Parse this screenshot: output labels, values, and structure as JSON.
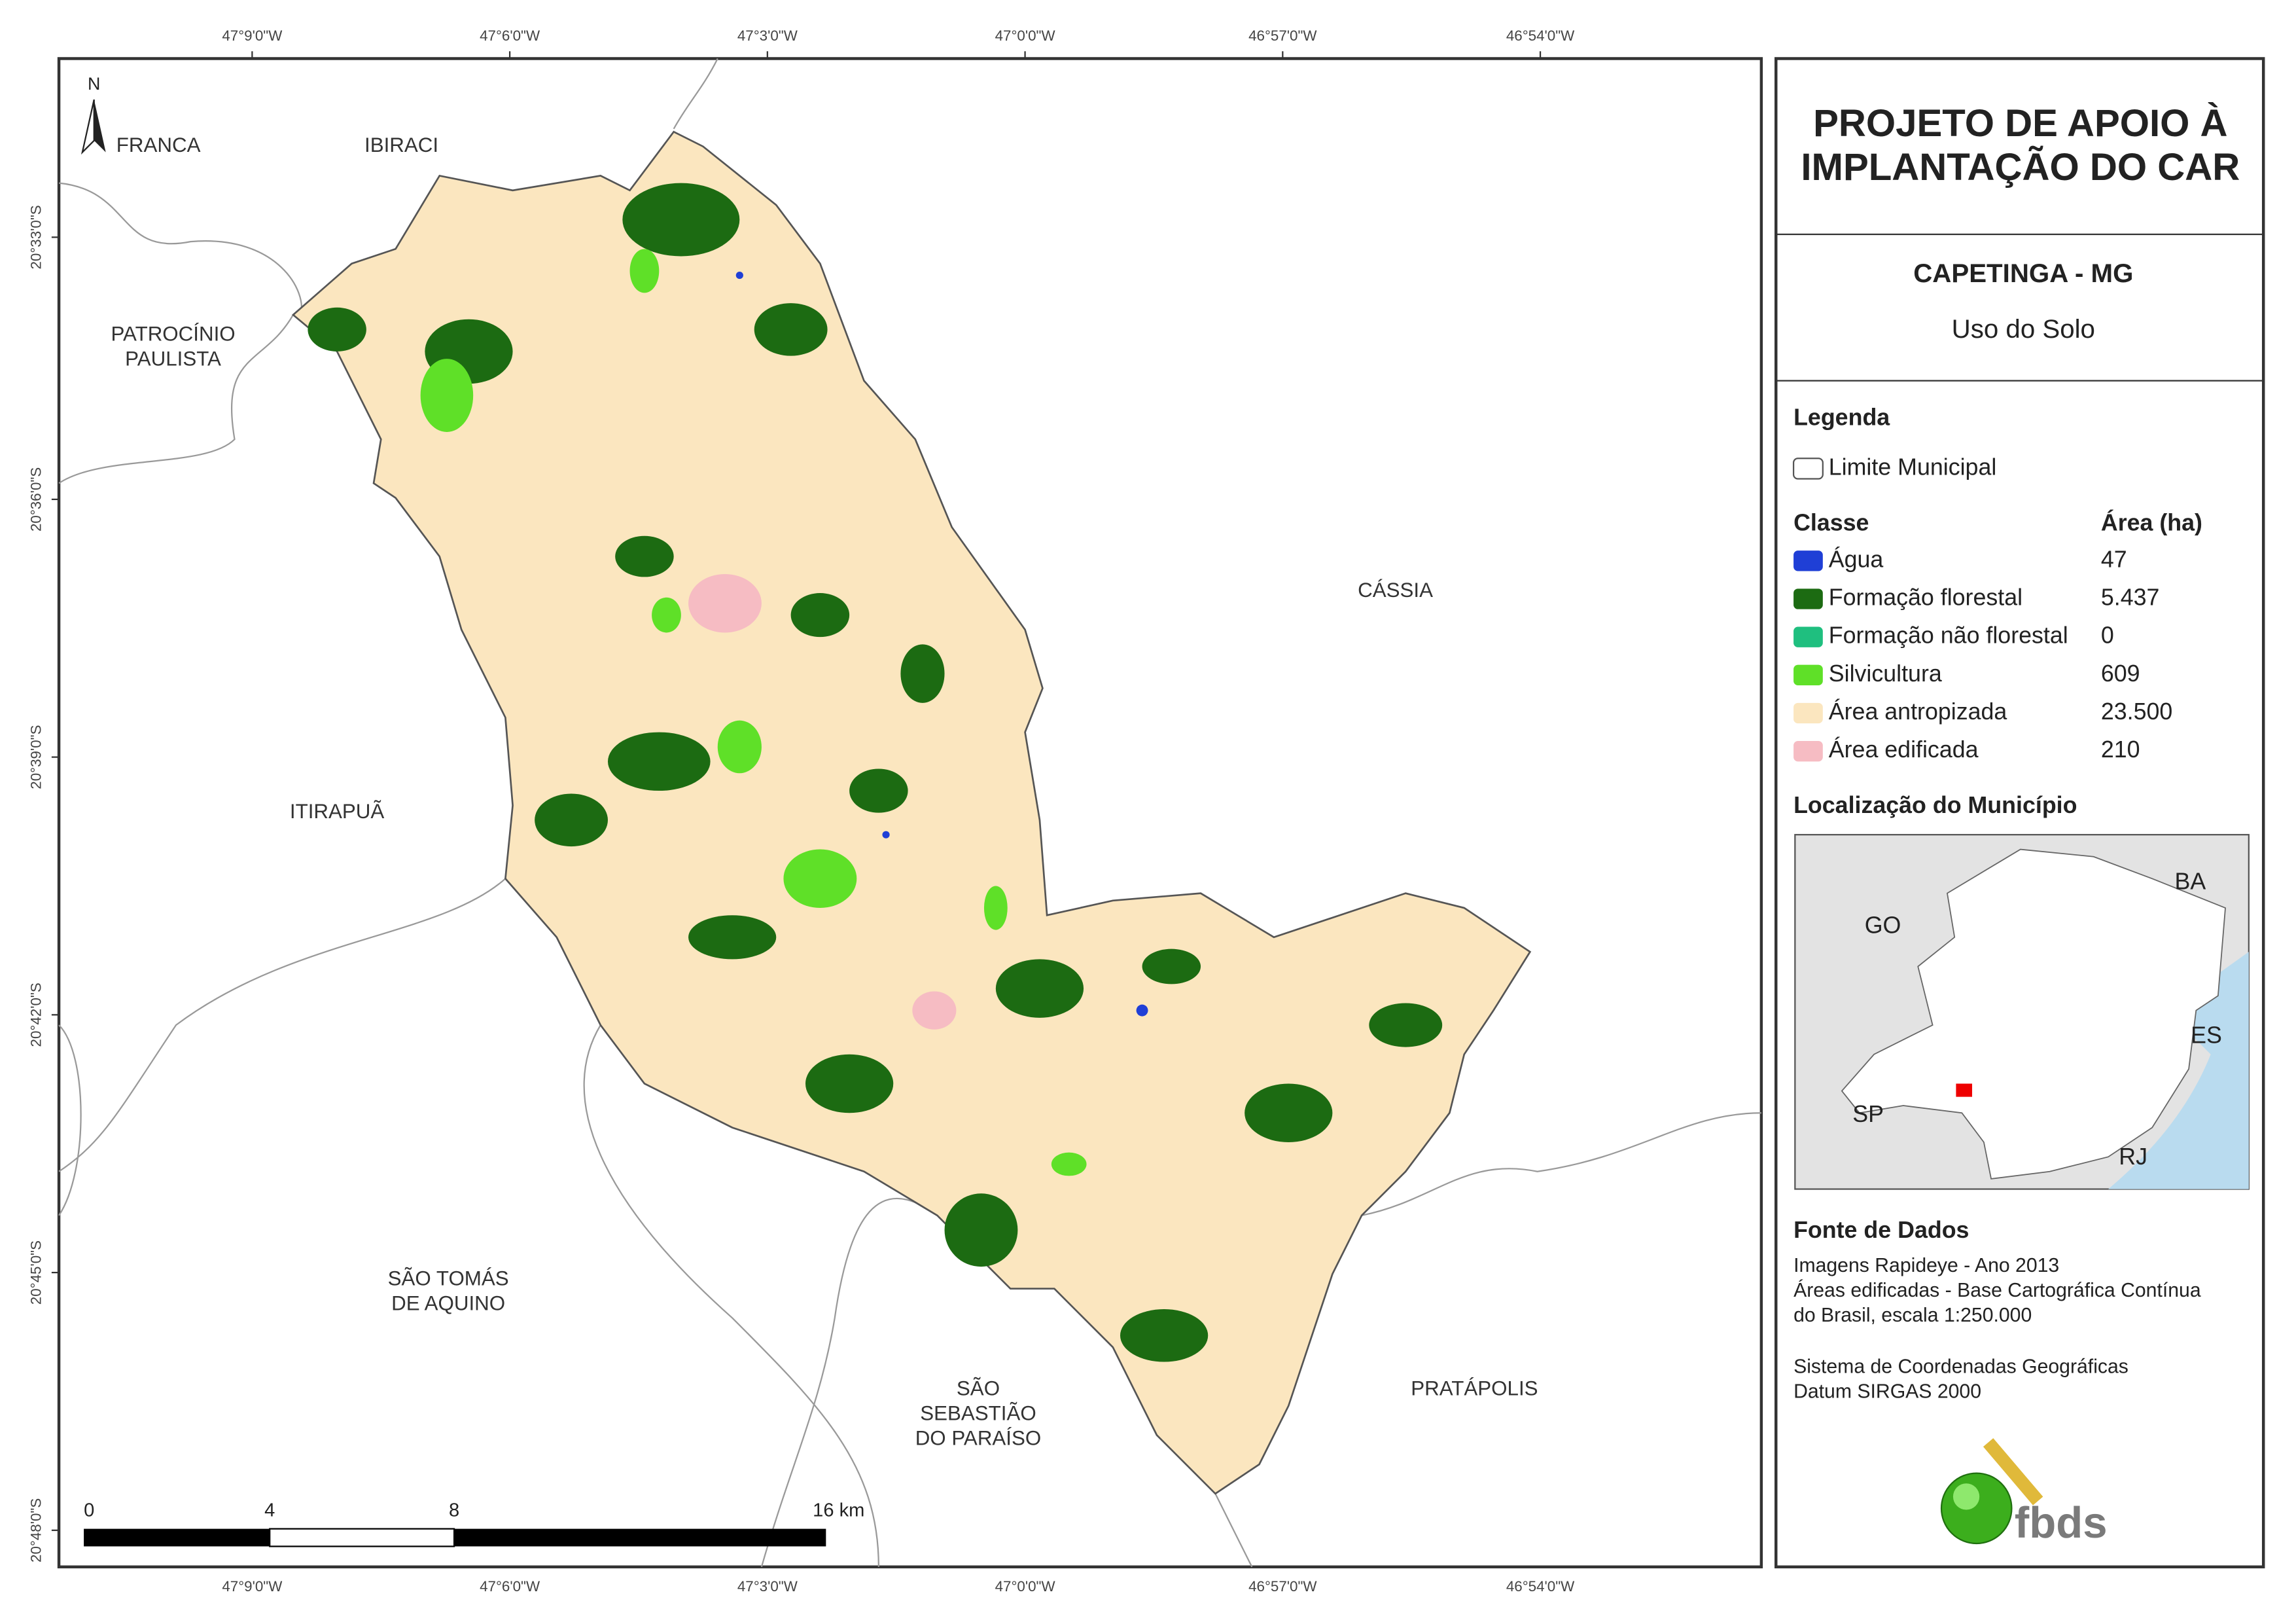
{
  "map": {
    "longitudes": [
      "47°9'0\"W",
      "47°6'0\"W",
      "47°3'0\"W",
      "47°0'0\"W",
      "46°57'0\"W",
      "46°54'0\"W"
    ],
    "latitudes": [
      "20°33'0\"S",
      "20°36'0\"S",
      "20°39'0\"S",
      "20°42'0\"S",
      "20°45'0\"S",
      "20°48'0\"S"
    ],
    "places": [
      [
        "FRANCA"
      ],
      [
        "IBIRACI"
      ],
      [
        "PATROCÍNIO",
        "PAULISTA"
      ],
      [
        "CÁSSIA"
      ],
      [
        "ITIRAPUÃ"
      ],
      [
        "SÃO TOMÁS",
        "DE AQUINO"
      ],
      [
        "SÃO",
        "SEBASTIÃO",
        "DO PARAÍSO"
      ],
      [
        "PRATÁPOLIS"
      ]
    ],
    "north": "N",
    "scale": [
      "0",
      "4",
      "8",
      "16 km"
    ]
  },
  "panel": {
    "title": [
      "PROJETO DE APOIO À",
      "IMPLANTAÇÃO DO CAR"
    ],
    "municipality": "CAPETINGA - MG",
    "subtitle": "Uso do Solo",
    "legend": {
      "heading": "Legenda",
      "boundary": "Limite Municipal",
      "class_header": "Classe",
      "area_header": "Área (ha)",
      "classes": [
        {
          "name": "Água",
          "area": "47",
          "color": "#1f3fd6"
        },
        {
          "name": "Formação florestal",
          "area": "5.437",
          "color": "#1c6b12"
        },
        {
          "name": "Formação não florestal",
          "area": "0",
          "color": "#1fbf7f"
        },
        {
          "name": "Silvicultura",
          "area": "609",
          "color": "#5fe028"
        },
        {
          "name": "Área antropizada",
          "area": "23.500",
          "color": "#fbe6bf"
        },
        {
          "name": "Área edificada",
          "area": "210",
          "color": "#f6bcc3"
        }
      ]
    },
    "location": {
      "heading": "Localização do Município",
      "states": [
        "GO",
        "BA",
        "ES",
        "SP",
        "RJ"
      ]
    },
    "sources": {
      "heading": "Fonte de Dados",
      "lines": [
        "Imagens Rapideye - Ano 2013",
        "Áreas edificadas - Base Cartográfica Contínua",
        "do Brasil, escala 1:250.000",
        "Sistema de Coordenadas Geográficas",
        "Datum SIRGAS 2000"
      ]
    },
    "logo": "fbds"
  }
}
